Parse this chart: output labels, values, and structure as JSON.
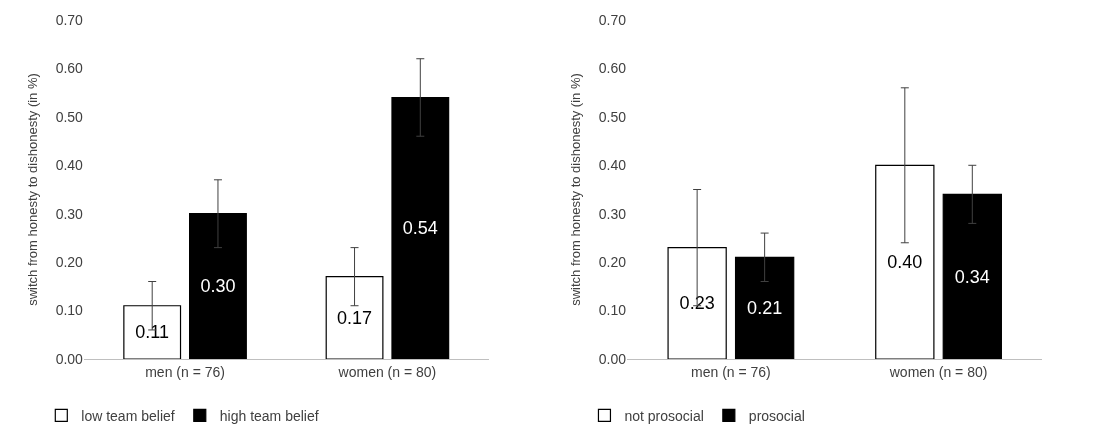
{
  "chart_data": [
    {
      "type": "bar",
      "ylabel": "switch from honesty to dishonesty (in %)",
      "categories": [
        "men (n = 76)",
        "women (n = 80)"
      ],
      "series": [
        {
          "name": "low team belief",
          "color": "#ffffff",
          "values": [
            0.11,
            0.17
          ],
          "value_labels": [
            "0.11",
            "0.17"
          ],
          "errors": [
            0.05,
            0.06
          ]
        },
        {
          "name": "high team belief",
          "color": "#000000",
          "values": [
            0.3,
            0.54
          ],
          "value_labels": [
            "0.30",
            "0.54"
          ],
          "errors": [
            0.07,
            0.08
          ]
        }
      ],
      "ylim": [
        0,
        0.7
      ],
      "yticks": [
        {
          "value": 0,
          "label": "0.00"
        },
        {
          "value": 0.1,
          "label": "0.10"
        },
        {
          "value": 0.2,
          "label": "0.20"
        },
        {
          "value": 0.3,
          "label": "0.30"
        },
        {
          "value": 0.4,
          "label": "0.40"
        },
        {
          "value": 0.5,
          "label": "0.50"
        },
        {
          "value": 0.6,
          "label": "0.60"
        },
        {
          "value": 0.7,
          "label": "0.70"
        }
      ],
      "legend": "bottom left"
    },
    {
      "type": "bar",
      "ylabel": "switch from honesty to dishonesty (in %)",
      "categories": [
        "men (n = 76)",
        "women (n = 80)"
      ],
      "series": [
        {
          "name": "not prosocial",
          "color": "#ffffff",
          "values": [
            0.23,
            0.4
          ],
          "value_labels": [
            "0.23",
            "0.40"
          ],
          "errors": [
            0.12,
            0.16
          ]
        },
        {
          "name": "prosocial",
          "color": "#000000",
          "values": [
            0.21,
            0.34
          ],
          "value_labels": [
            "0.21",
            "0.34"
          ],
          "errors": [
            0.05,
            0.06
          ]
        }
      ],
      "ylim": [
        0,
        0.7
      ],
      "yticks": [
        {
          "value": 0,
          "label": "0.00"
        },
        {
          "value": 0.1,
          "label": "0.10"
        },
        {
          "value": 0.2,
          "label": "0.20"
        },
        {
          "value": 0.3,
          "label": "0.30"
        },
        {
          "value": 0.4,
          "label": "0.40"
        },
        {
          "value": 0.5,
          "label": "0.50"
        },
        {
          "value": 0.6,
          "label": "0.60"
        },
        {
          "value": 0.7,
          "label": "0.70"
        }
      ],
      "legend": "bottom left"
    }
  ]
}
